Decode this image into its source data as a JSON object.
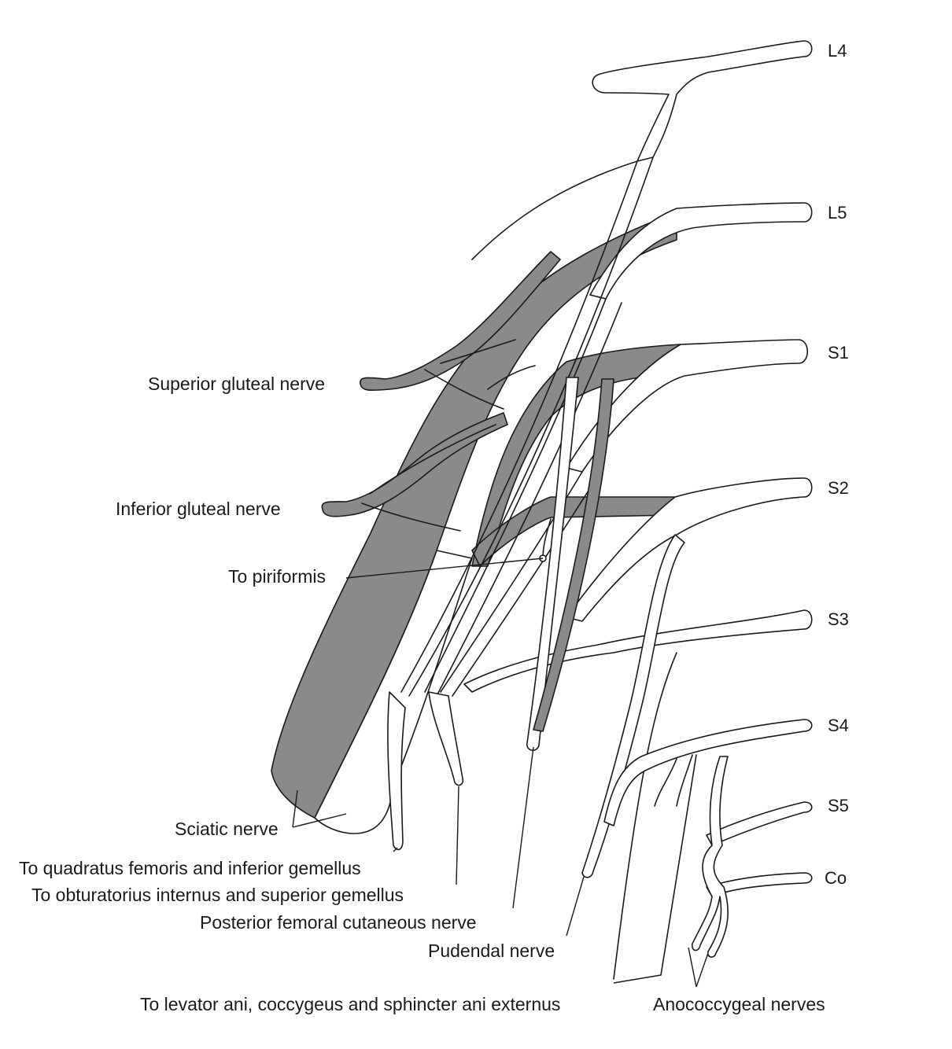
{
  "roots": {
    "l4": "L4",
    "l5": "L5",
    "s1": "S1",
    "s2": "S2",
    "s3": "S3",
    "s4": "S4",
    "s5": "S5",
    "co": "Co"
  },
  "labels": {
    "superior_gluteal": "Superior gluteal nerve",
    "inferior_gluteal": "Inferior gluteal nerve",
    "piriformis": "To piriformis",
    "sciatic": "Sciatic nerve",
    "quadratus": "To quadratus femoris and inferior gemellus",
    "obturatorius": "To obturatorius internus and superior gemellus",
    "post_femoral": "Posterior femoral cutaneous nerve",
    "pudendal": "Pudendal nerve",
    "levator": "To levator ani, coccygeus and sphincter ani externus",
    "anococcygeal": "Anococcygeal nerves"
  },
  "colors": {
    "line": "#1a1a1a",
    "dorsal_division_fill": "#8a8a8a",
    "ventral_division_fill": "#ffffff"
  }
}
